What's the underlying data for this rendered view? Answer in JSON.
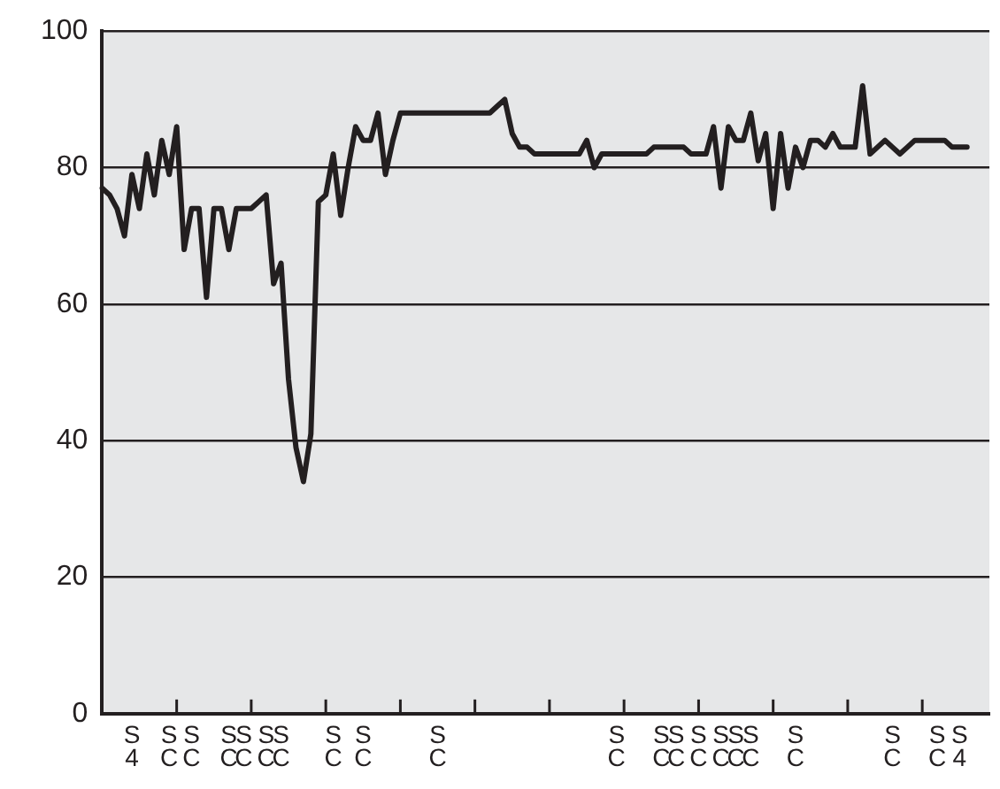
{
  "chart_data": {
    "type": "line",
    "categories": [
      null,
      null,
      null,
      null,
      "S 4",
      null,
      null,
      null,
      null,
      "S C",
      null,
      null,
      "S C",
      null,
      null,
      null,
      null,
      "S C",
      null,
      "S C",
      null,
      null,
      "S C",
      null,
      "S C",
      null,
      null,
      null,
      null,
      null,
      null,
      "S C",
      null,
      null,
      null,
      "S C",
      null,
      null,
      null,
      null,
      null,
      null,
      null,
      null,
      null,
      "S C",
      null,
      null,
      null,
      null,
      null,
      null,
      null,
      null,
      null,
      null,
      null,
      null,
      null,
      null,
      null,
      null,
      null,
      null,
      null,
      null,
      null,
      null,
      null,
      "S C",
      null,
      null,
      null,
      null,
      null,
      "S C",
      null,
      "S C",
      null,
      null,
      "S C",
      null,
      null,
      "S C",
      null,
      "S C",
      null,
      "S C",
      null,
      null,
      null,
      null,
      null,
      "S C",
      null,
      null,
      null,
      null,
      null,
      null,
      null,
      null,
      null,
      null,
      null,
      null,
      "S C",
      null,
      null,
      null,
      null,
      null,
      "S C",
      null,
      null,
      "S 4",
      null,
      null,
      null,
      null
    ],
    "series": [
      {
        "color": "#231f20",
        "values": [
          77,
          76,
          74,
          70,
          79,
          74,
          82,
          76,
          84,
          79,
          86,
          68,
          74,
          74,
          61,
          74,
          74,
          68,
          74,
          74,
          74,
          75,
          76,
          63,
          66,
          49,
          39,
          34,
          41,
          75,
          76,
          82,
          73,
          80,
          86,
          84,
          84,
          88,
          79,
          84,
          88,
          88,
          88,
          88,
          88,
          88,
          88,
          88,
          88,
          88,
          88,
          88,
          88,
          89,
          90,
          85,
          83,
          83,
          82,
          82,
          82,
          82,
          82,
          82,
          82,
          84,
          80,
          82,
          82,
          82,
          82,
          82,
          82,
          82,
          83,
          83,
          83,
          83,
          83,
          82,
          82,
          82,
          86,
          77,
          86,
          84,
          84,
          88,
          81,
          85,
          74,
          85,
          77,
          83,
          80,
          84,
          84,
          83,
          85,
          83,
          83,
          83,
          92,
          82,
          83,
          84,
          83,
          82,
          83,
          84,
          84,
          84,
          84,
          84,
          83,
          83,
          83,
          null,
          null,
          null
        ]
      }
    ],
    "ylim": [
      0,
      100
    ],
    "yticks": [
      0,
      20,
      40,
      60,
      80,
      100
    ],
    "grid": "y",
    "marker": "none",
    "line_style": "solid"
  }
}
